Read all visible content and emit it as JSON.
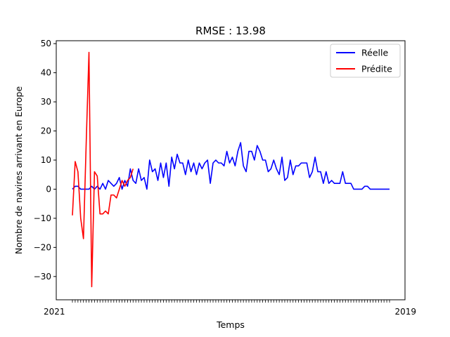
{
  "chart_data": {
    "type": "line",
    "title": "RMSE : 13.98",
    "xlabel": "Temps",
    "ylabel": "Nombre de navires arrivant en Europe",
    "ylim": [
      -38,
      51
    ],
    "yticks": [
      -30,
      -20,
      -10,
      0,
      10,
      20,
      30,
      40,
      50
    ],
    "x_tick_labels_left": "2021",
    "x_tick_labels_right": "2019",
    "legend_placement": "top-right",
    "grid": false,
    "colors": {
      "reelle": "#0000ff",
      "predite": "#ff0000"
    },
    "series": [
      {
        "name": "Réelle",
        "color": "#0000ff",
        "start_index": 0,
        "values": [
          0,
          1,
          1,
          0,
          0,
          0,
          0,
          1,
          0,
          1,
          0,
          2,
          0,
          3,
          2,
          1,
          2,
          4,
          0,
          3,
          1,
          7,
          3,
          2,
          7,
          3,
          4,
          0,
          10,
          6,
          7,
          3,
          9,
          4,
          9,
          1,
          11,
          7,
          12,
          9,
          9,
          5,
          10,
          6,
          9,
          5,
          9,
          7,
          9,
          10,
          2,
          9,
          10,
          9,
          9,
          8,
          13,
          9,
          11,
          8,
          13,
          16,
          8,
          6,
          13,
          13,
          10,
          15,
          13,
          10,
          10,
          6,
          7,
          10,
          7,
          5,
          11,
          3,
          4,
          10,
          5,
          8,
          8,
          9,
          9,
          9,
          4,
          6,
          11,
          6,
          6,
          2,
          6,
          2,
          3,
          2,
          2,
          2,
          6,
          2,
          2,
          2,
          0,
          0,
          0,
          0,
          1,
          1,
          0,
          0,
          0,
          0,
          0,
          0,
          0,
          0
        ]
      },
      {
        "name": "Prédite",
        "color": "#ff0000",
        "start_index": 0,
        "values": [
          -9,
          9.5,
          6,
          -10,
          -17,
          16,
          47,
          -33.5,
          6,
          4.5,
          -8.5,
          -8.5,
          -7.5,
          -8.5,
          -2,
          -2,
          -3,
          0,
          3,
          1,
          3,
          4,
          7
        ]
      }
    ]
  }
}
